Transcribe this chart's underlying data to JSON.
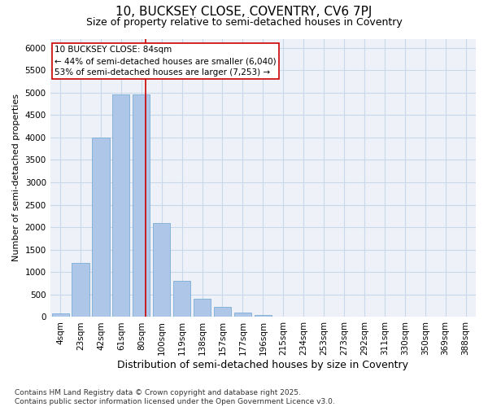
{
  "title": "10, BUCKSEY CLOSE, COVENTRY, CV6 7PJ",
  "subtitle": "Size of property relative to semi-detached houses in Coventry",
  "xlabel": "Distribution of semi-detached houses by size in Coventry",
  "ylabel": "Number of semi-detached properties",
  "categories": [
    "4sqm",
    "23sqm",
    "42sqm",
    "61sqm",
    "80sqm",
    "100sqm",
    "119sqm",
    "138sqm",
    "157sqm",
    "177sqm",
    "196sqm",
    "215sqm",
    "234sqm",
    "253sqm",
    "273sqm",
    "292sqm",
    "311sqm",
    "330sqm",
    "350sqm",
    "369sqm",
    "388sqm"
  ],
  "values": [
    80,
    1200,
    4000,
    4950,
    4950,
    2100,
    800,
    400,
    220,
    100,
    50,
    15,
    5,
    2,
    1,
    0,
    0,
    0,
    0,
    0,
    0
  ],
  "bar_color": "#aec6e8",
  "bar_edge_color": "#7aadd4",
  "grid_color": "#c8d8ea",
  "background_color": "#eef2f8",
  "vline_color": "#cc0000",
  "vline_pos": 4.2,
  "annotation_title": "10 BUCKSEY CLOSE: 84sqm",
  "annotation_line1": "← 44% of semi-detached houses are smaller (6,040)",
  "annotation_line2": "53% of semi-detached houses are larger (7,253) →",
  "annotation_box_color": "#cc0000",
  "ylim": [
    0,
    6200
  ],
  "yticks": [
    0,
    500,
    1000,
    1500,
    2000,
    2500,
    3000,
    3500,
    4000,
    4500,
    5000,
    5500,
    6000
  ],
  "footer_line1": "Contains HM Land Registry data © Crown copyright and database right 2025.",
  "footer_line2": "Contains public sector information licensed under the Open Government Licence v3.0.",
  "title_fontsize": 11,
  "subtitle_fontsize": 9,
  "xlabel_fontsize": 9,
  "ylabel_fontsize": 8,
  "tick_fontsize": 7.5,
  "annotation_fontsize": 7.5,
  "footer_fontsize": 6.5
}
